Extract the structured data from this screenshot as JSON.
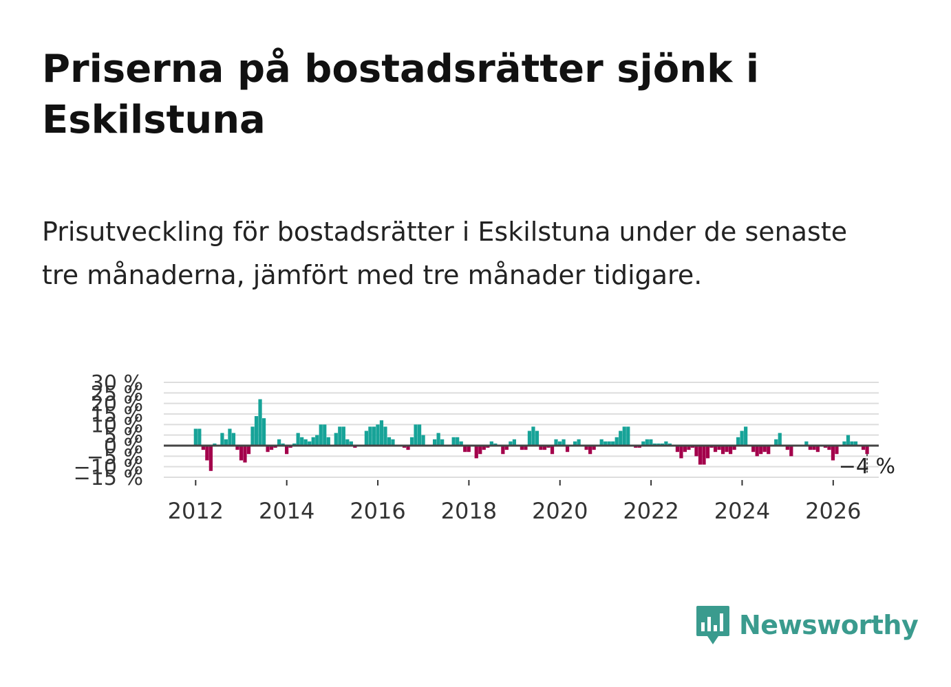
{
  "title": "Priserna på bostadsrätter sjönk i Eskilstuna",
  "subtitle": "Prisutveckling för bostadsrätter i Eskilstuna under de senaste tre månaderna, jämfört med tre månader tidigare.",
  "brand": {
    "name": "Newsworthy",
    "icon": "newsworthy-logo-icon"
  },
  "colors": {
    "positive": "#17a398",
    "negative": "#a3004b",
    "zero_line": "#444444",
    "grid": "#dddddd",
    "brand": "#3a9b8e"
  },
  "chart_data": {
    "type": "bar",
    "title": "Priserna på bostadsrätter sjönk i Eskilstuna",
    "xlabel": "",
    "ylabel": "",
    "x_start": 2012.0,
    "x_step": 0.0833,
    "xlim": [
      2011.3,
      2027.0
    ],
    "ylim": [
      -15,
      30
    ],
    "y_ticks": [
      -15,
      -10,
      -5,
      0,
      5,
      10,
      15,
      20,
      25,
      30
    ],
    "y_tick_labels": [
      "−15 %",
      "−10 %",
      "−5 %",
      "0 %",
      "5 %",
      "10 %",
      "15 %",
      "20 %",
      "25 %",
      "30 %"
    ],
    "x_ticks": [
      2012,
      2014,
      2016,
      2018,
      2020,
      2022,
      2024,
      2026
    ],
    "x_tick_labels": [
      "2012",
      "2014",
      "2016",
      "2018",
      "2020",
      "2022",
      "2024",
      "2026"
    ],
    "last_value_label": "−4 %",
    "values": [
      8,
      8,
      -2,
      -7,
      -12,
      1,
      0,
      6,
      3,
      8,
      6,
      -2,
      -7,
      -8,
      -4,
      9,
      14,
      22,
      13,
      -3,
      -2,
      -1,
      3,
      1,
      -4,
      -1,
      1,
      6,
      4,
      3,
      2,
      4,
      5,
      10,
      10,
      4,
      0,
      6,
      9,
      9,
      3,
      2,
      -1,
      0,
      0,
      7,
      9,
      9,
      10,
      12,
      9,
      4,
      3,
      0,
      0,
      -1,
      -2,
      4,
      10,
      10,
      5,
      0,
      0,
      3,
      6,
      3,
      0,
      0,
      4,
      4,
      2,
      -3,
      -3,
      0,
      -6,
      -4,
      -2,
      -1,
      2,
      1,
      0,
      -4,
      -2,
      2,
      3,
      0,
      -2,
      -2,
      7,
      9,
      7,
      -2,
      -2,
      -1,
      -4,
      3,
      2,
      3,
      -3,
      0,
      2,
      3,
      0,
      -2,
      -4,
      -2,
      0,
      3,
      2,
      2,
      2,
      4,
      7,
      9,
      9,
      0,
      -1,
      -1,
      2,
      3,
      3,
      1,
      1,
      1,
      2,
      1,
      0,
      -3,
      -6,
      -3,
      -2,
      -1,
      -5,
      -9,
      -9,
      -6,
      -1,
      -3,
      -2,
      -4,
      -3,
      -4,
      -2,
      4,
      7,
      9,
      0,
      -3,
      -5,
      -4,
      -3,
      -4,
      0,
      3,
      6,
      0,
      -2,
      -5,
      0,
      0,
      0,
      2,
      -2,
      -2,
      -3,
      0,
      -1,
      -2,
      -7,
      -4,
      0,
      2,
      5,
      2,
      2,
      0,
      -2,
      -4
    ]
  }
}
